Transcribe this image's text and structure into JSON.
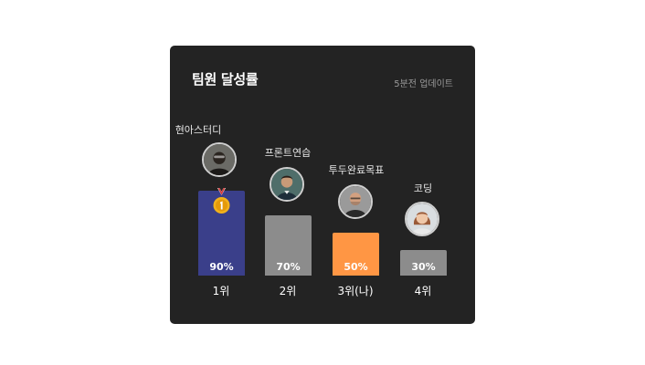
{
  "card": {
    "title": "팀원 달성률",
    "updated": "5분전 업데이트"
  },
  "colors": {
    "card_bg": "#232323",
    "first": "#3a3f8a",
    "second": "#8c8c8c",
    "third": "#ff9644",
    "fourth": "#8c8c8c"
  },
  "teams": [
    {
      "name": "현아스터디",
      "percent": 90,
      "value_label": "90%",
      "rank": "1위",
      "avatar_icon": "man-glasses-avatar-icon",
      "medal": "gold-medal-icon"
    },
    {
      "name": "프론트연습",
      "percent": 70,
      "value_label": "70%",
      "rank": "2위",
      "avatar_icon": "man-smiling-avatar-icon"
    },
    {
      "name": "투두완료목표",
      "percent": 50,
      "value_label": "50%",
      "rank": "3위(나)",
      "avatar_icon": "bald-man-avatar-icon"
    },
    {
      "name": "코딩",
      "percent": 30,
      "value_label": "30%",
      "rank": "4위",
      "avatar_icon": "woman-avatar-icon"
    }
  ]
}
